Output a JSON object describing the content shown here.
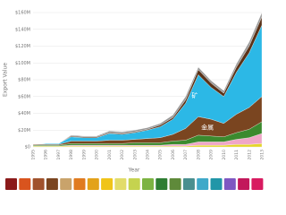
{
  "chart_data": {
    "type": "stacked-area",
    "y_label": "Export Value",
    "x_label": "Year",
    "x": [
      1995,
      1996,
      1997,
      1998,
      1999,
      2000,
      2001,
      2002,
      2003,
      2004,
      2005,
      2006,
      2007,
      2008,
      2009,
      2010,
      2011,
      2012,
      2013
    ],
    "xlim": [
      1995,
      2013
    ],
    "ylim": [
      0,
      160000000
    ],
    "yticks": [
      {
        "value": 0,
        "label": "$0"
      },
      {
        "value": 20000000,
        "label": "$20M"
      },
      {
        "value": 40000000,
        "label": "$40M"
      },
      {
        "value": 60000000,
        "label": "$60M"
      },
      {
        "value": 80000000,
        "label": "$80M"
      },
      {
        "value": 100000000,
        "label": "$100M"
      },
      {
        "value": 120000000,
        "label": "$120M"
      },
      {
        "value": 140000000,
        "label": "$140M"
      },
      {
        "value": 160000000,
        "label": "$160M"
      }
    ],
    "grid": true,
    "series": [
      {
        "color": "#e3d52b",
        "values": [
          1000000,
          1000000,
          1000000,
          1000000,
          1000000,
          1000000,
          1000000,
          1000000,
          1000000,
          1000000,
          1000000,
          1000000,
          1000000,
          2000000,
          2000000,
          2000000,
          3000000,
          3000000,
          4000000
        ]
      },
      {
        "color": "#f0a6c8",
        "values": [
          0,
          0,
          0,
          1000000,
          1000000,
          1000000,
          1000000,
          1000000,
          1000000,
          1000000,
          1000000,
          2000000,
          2000000,
          4000000,
          4000000,
          4000000,
          6000000,
          8000000,
          12000000
        ]
      },
      {
        "color": "#3b8a2e",
        "values": [
          1000000,
          1000000,
          1000000,
          2000000,
          2000000,
          2000000,
          2000000,
          2000000,
          3000000,
          3000000,
          3000000,
          4000000,
          5000000,
          8000000,
          7000000,
          6000000,
          8000000,
          10000000,
          14000000
        ]
      },
      {
        "name": "金属",
        "color": "#7a4520",
        "values": [
          1000000,
          1000000,
          1000000,
          3000000,
          3000000,
          3000000,
          4000000,
          4000000,
          4000000,
          5000000,
          6000000,
          8000000,
          14000000,
          22000000,
          20000000,
          16000000,
          22000000,
          26000000,
          30000000
        ]
      },
      {
        "name": "矿",
        "color": "#2cb8e6",
        "values": [
          0,
          1000000,
          1000000,
          5000000,
          4000000,
          4000000,
          8000000,
          7000000,
          8000000,
          10000000,
          13000000,
          18000000,
          30000000,
          50000000,
          38000000,
          32000000,
          50000000,
          65000000,
          85000000
        ]
      },
      {
        "color": "#5a3218",
        "values": [
          0,
          0,
          0,
          1000000,
          1000000,
          1000000,
          1000000,
          1000000,
          1000000,
          1000000,
          2000000,
          2000000,
          4000000,
          6000000,
          5000000,
          4000000,
          6000000,
          8000000,
          10000000
        ]
      },
      {
        "color": "#9a9a9a",
        "values": [
          0,
          0,
          0,
          1000000,
          1000000,
          1000000,
          2000000,
          2000000,
          2000000,
          2000000,
          2000000,
          3000000,
          4000000,
          3000000,
          3000000,
          3000000,
          4000000,
          5000000,
          5000000
        ]
      }
    ]
  }
}
